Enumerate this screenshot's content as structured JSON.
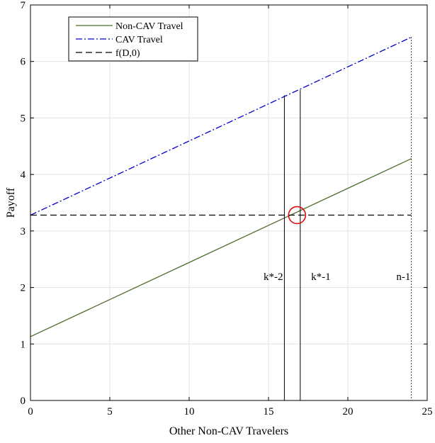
{
  "chart_data": {
    "type": "line",
    "xlabel": "Other Non-CAV Travelers",
    "ylabel": "Payoff",
    "xlim": [
      0,
      25
    ],
    "ylim": [
      0,
      7
    ],
    "xticks": [
      0,
      5,
      10,
      15,
      20,
      25
    ],
    "yticks": [
      0,
      1,
      2,
      3,
      4,
      5,
      6,
      7
    ],
    "grid": true,
    "legend_position": "top-left",
    "series": [
      {
        "name": "Non-CAV Travel",
        "x": [
          0,
          24
        ],
        "y": [
          1.13,
          4.28
        ],
        "color": "#4d6b2c",
        "style": "solid"
      },
      {
        "name": "CAV Travel",
        "x": [
          0,
          24
        ],
        "y": [
          3.28,
          6.43
        ],
        "color": "#0000cc",
        "style": "dashdot"
      },
      {
        "name": "f(D,0)",
        "x": [
          0,
          24
        ],
        "y": [
          3.28,
          3.28
        ],
        "color": "#000000",
        "style": "dashed"
      }
    ],
    "vertical_markers": [
      {
        "x": 16,
        "y_top": 5.4,
        "style": "solid"
      },
      {
        "x": 17,
        "y_top": 5.5,
        "style": "solid"
      },
      {
        "x": 24,
        "y_top": 6.43,
        "style": "dotted"
      }
    ],
    "highlight_circle": {
      "x": 16.8,
      "y": 3.28,
      "color": "#e00000"
    },
    "annotations": [
      {
        "text": "k*-2",
        "x": 15.3,
        "y": 2.13
      },
      {
        "text": "k*-1",
        "x": 18.3,
        "y": 2.13
      },
      {
        "text": "n-1",
        "x": 23.5,
        "y": 2.13
      }
    ]
  }
}
